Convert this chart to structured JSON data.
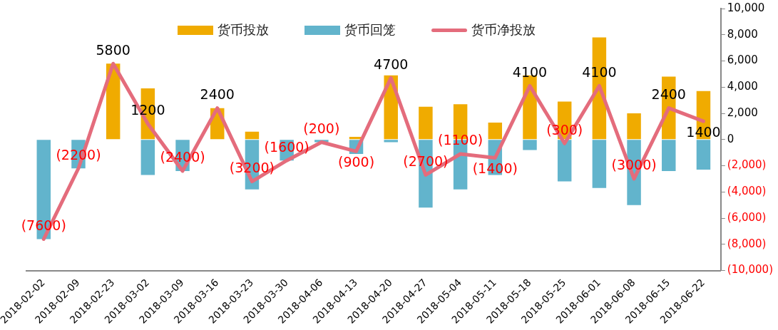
{
  "chart_data": {
    "type": "bar",
    "stacked": true,
    "legend": "top",
    "grid": false,
    "categories": [
      "2018-02-02",
      "2018-02-09",
      "2018-02-23",
      "2018-03-02",
      "2018-03-09",
      "2018-03-16",
      "2018-03-23",
      "2018-03-30",
      "2018-04-06",
      "2018-04-13",
      "2018-04-20",
      "2018-04-27",
      "2018-05-04",
      "2018-05-11",
      "2018-05-18",
      "2018-05-25",
      "2018-06-01",
      "2018-06-08",
      "2018-06-15",
      "2018-06-22"
    ],
    "series": [
      {
        "name": "货币投放",
        "color": "#f0ab00",
        "values": [
          0,
          0,
          5800,
          3900,
          0,
          2400,
          600,
          0,
          0,
          200,
          4900,
          2500,
          2700,
          1300,
          4900,
          2900,
          7800,
          2000,
          4800,
          3700
        ]
      },
      {
        "name": "货币回笼",
        "color": "#62b4cc",
        "values": [
          -7600,
          -2200,
          0,
          -2700,
          -2400,
          0,
          -3800,
          -1600,
          -200,
          -1100,
          -200,
          -5200,
          -3800,
          -2700,
          -800,
          -3200,
          -3700,
          -5000,
          -2400,
          -2300
        ]
      },
      {
        "name": "货币净投放",
        "type": "line",
        "color": "#e46c7c",
        "marker": "none",
        "values": [
          -7600,
          -2200,
          5800,
          1200,
          -2400,
          2400,
          -3200,
          -1600,
          -200,
          -900,
          4700,
          -2700,
          -1100,
          -1400,
          4100,
          -300,
          4100,
          -3000,
          2400,
          1400
        ],
        "value_labels": [
          "(7600)",
          "(2200)",
          "5800",
          "1200",
          "(2400)",
          "2400",
          "(3200)",
          "(1600)",
          "(200)",
          "(900)",
          "4700",
          "(2700)",
          "(1100)",
          "(1400)",
          "4100",
          "(300)",
          "4100",
          "(3000)",
          "2400",
          "1400"
        ]
      }
    ],
    "ylim": [
      -10000,
      10000
    ],
    "yticks": [
      {
        "value": -10000,
        "label": "(10,000)"
      },
      {
        "value": -8000,
        "label": "(8,000)"
      },
      {
        "value": -6000,
        "label": "(6,000)"
      },
      {
        "value": -4000,
        "label": "(4,000)"
      },
      {
        "value": -2000,
        "label": "(2,000)"
      },
      0,
      {
        "value": 2000,
        "label": "2,000"
      },
      {
        "value": 4000,
        "label": "4,000"
      },
      {
        "value": 6000,
        "label": "6,000"
      },
      {
        "value": 8000,
        "label": "8,000"
      },
      {
        "value": 10000,
        "label": "10,000"
      }
    ]
  }
}
